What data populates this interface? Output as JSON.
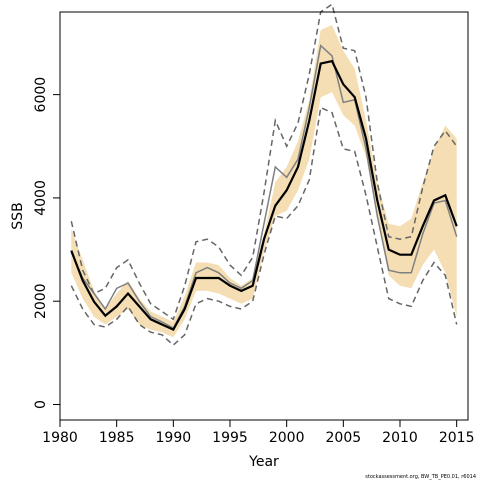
{
  "chart_data": {
    "type": "line",
    "xlabel": "Year",
    "ylabel": "SSB",
    "xlim": [
      1980,
      2016
    ],
    "ylim": [
      -300,
      7600
    ],
    "x_ticks": [
      1980,
      1985,
      1990,
      1995,
      2000,
      2005,
      2010,
      2015
    ],
    "y_ticks": [
      0,
      2000,
      4000,
      6000
    ],
    "grid": false,
    "footnote": "stockassessment.org, BW_TB_PE0.01, r6014",
    "colors": {
      "band": "#f5deb3",
      "estimate": "#000000",
      "previous": "#808080",
      "previous_ci": "#666666"
    },
    "x": [
      1981,
      1982,
      1983,
      1984,
      1985,
      1986,
      1987,
      1988,
      1989,
      1990,
      1991,
      1992,
      1993,
      1994,
      1995,
      1996,
      1997,
      1998,
      1999,
      2000,
      2001,
      2002,
      2003,
      2004,
      2005,
      2006,
      2007,
      2008,
      2009,
      2010,
      2011,
      2012,
      2013,
      2014,
      2015
    ],
    "series": [
      {
        "role": "ci-band",
        "lower": [
          2550,
          2050,
          1700,
          1550,
          1700,
          1850,
          1550,
          1450,
          1400,
          1300,
          1650,
          2200,
          2200,
          2150,
          2050,
          1950,
          2050,
          2950,
          3650,
          3750,
          4150,
          4750,
          5950,
          6050,
          5600,
          5400,
          4800,
          3600,
          2500,
          2300,
          2250,
          2700,
          3000,
          2550,
          1700
        ],
        "upper": [
          3400,
          2800,
          2200,
          1850,
          2150,
          2400,
          2050,
          1800,
          1700,
          1600,
          2100,
          2750,
          2750,
          2700,
          2450,
          2300,
          2450,
          3300,
          4300,
          4600,
          5100,
          5900,
          7250,
          7350,
          6850,
          6500,
          5500,
          4300,
          3500,
          3450,
          3600,
          4300,
          4950,
          5400,
          5150
        ]
      },
      {
        "role": "estimate",
        "values": [
          2980,
          2400,
          1990,
          1720,
          1900,
          2150,
          1900,
          1650,
          1550,
          1450,
          1850,
          2450,
          2450,
          2450,
          2300,
          2200,
          2300,
          3200,
          3850,
          4150,
          4600,
          5500,
          6600,
          6650,
          6200,
          5950,
          5150,
          3950,
          3000,
          2900,
          2900,
          3450,
          3950,
          4050,
          3450
        ]
      },
      {
        "role": "previous",
        "values": [
          2950,
          2450,
          2150,
          1850,
          2250,
          2350,
          2000,
          1700,
          1600,
          1480,
          1900,
          2550,
          2650,
          2550,
          2350,
          2250,
          2400,
          3500,
          4600,
          4400,
          4750,
          5750,
          6950,
          6750,
          5850,
          5900,
          4950,
          3650,
          2600,
          2550,
          2550,
          3300,
          3900,
          3950,
          3250
        ]
      },
      {
        "role": "previous-ci-lower",
        "values": [
          2300,
          1850,
          1550,
          1500,
          1650,
          1900,
          1550,
          1400,
          1350,
          1150,
          1350,
          1950,
          2050,
          2000,
          1900,
          1850,
          2000,
          2900,
          3650,
          3600,
          3850,
          4350,
          5750,
          5650,
          4950,
          4900,
          4050,
          3050,
          2050,
          1950,
          1900,
          2400,
          2750,
          2500,
          1550
        ]
      },
      {
        "role": "previous-ci-upper",
        "values": [
          3550,
          2600,
          2150,
          2250,
          2650,
          2800,
          2350,
          1950,
          1800,
          1650,
          2300,
          3150,
          3200,
          3050,
          2700,
          2500,
          2850,
          4100,
          5500,
          5000,
          5450,
          6400,
          7600,
          7750,
          6900,
          6850,
          5950,
          4300,
          3250,
          3200,
          3250,
          4200,
          5000,
          5300,
          5000
        ]
      }
    ]
  }
}
